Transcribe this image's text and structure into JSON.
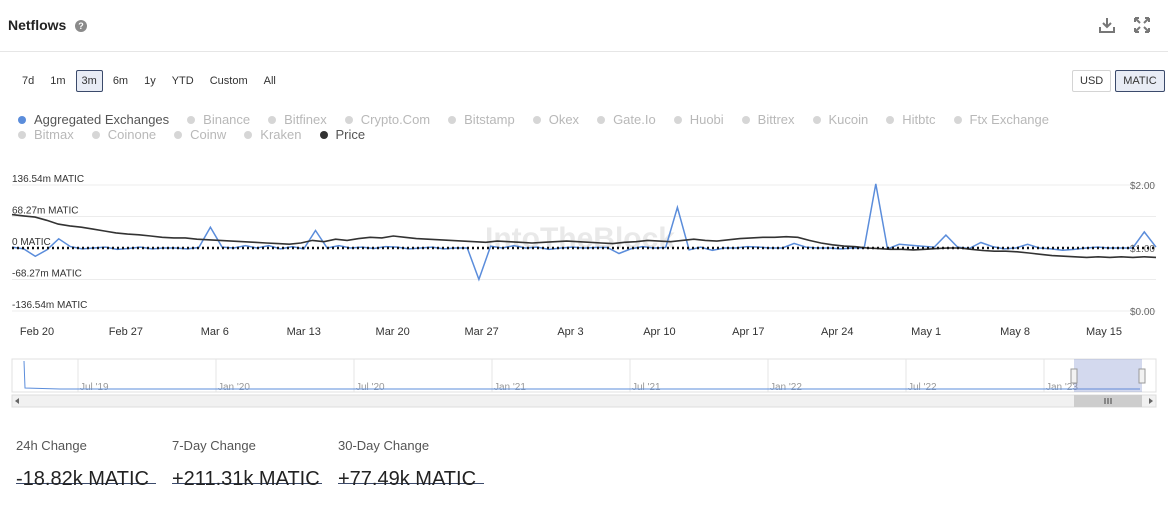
{
  "header": {
    "title": "Netflows",
    "help_icon": "?"
  },
  "range_buttons": [
    "7d",
    "1m",
    "3m",
    "6m",
    "1y",
    "YTD",
    "Custom",
    "All"
  ],
  "range_active": "3m",
  "unit_buttons": [
    "USD",
    "MATIC"
  ],
  "unit_active": "MATIC",
  "legend": [
    [
      {
        "label": "Aggregated Exchanges",
        "on": true,
        "color": "#5b8ddb"
      },
      {
        "label": "Binance",
        "on": false
      },
      {
        "label": "Bitfinex",
        "on": false
      },
      {
        "label": "Crypto.Com",
        "on": false
      },
      {
        "label": "Bitstamp",
        "on": false
      },
      {
        "label": "Okex",
        "on": false
      },
      {
        "label": "Gate.Io",
        "on": false
      },
      {
        "label": "Huobi",
        "on": false
      },
      {
        "label": "Bittrex",
        "on": false
      },
      {
        "label": "Kucoin",
        "on": false
      },
      {
        "label": "Hitbtc",
        "on": false
      },
      {
        "label": "Ftx Exchange",
        "on": false
      }
    ],
    [
      {
        "label": "Bitmax",
        "on": false
      },
      {
        "label": "Coinone",
        "on": false
      },
      {
        "label": "Coinw",
        "on": false
      },
      {
        "label": "Kraken",
        "on": false
      },
      {
        "label": "Price",
        "on": true,
        "color": "#333333"
      }
    ]
  ],
  "chart_data": {
    "type": "line",
    "watermark": "IntoTheBlock",
    "y_left_ticks": [
      "136.54m MATIC",
      "68.27m MATIC",
      "0 MATIC",
      "-68.27m MATIC",
      "-136.54m MATIC"
    ],
    "y_left_values": [
      136.54,
      68.27,
      0,
      -68.27,
      -136.54
    ],
    "y_right_ticks": [
      "$2.00",
      "$1.00",
      "$0.00"
    ],
    "y_right_values": [
      2.0,
      1.0,
      0.0
    ],
    "x_ticks": [
      "Feb 20",
      "Feb 27",
      "Mar 6",
      "Mar 13",
      "Mar 20",
      "Mar 27",
      "Apr 3",
      "Apr 10",
      "Apr 17",
      "Apr 24",
      "May 1",
      "May 8",
      "May 15"
    ],
    "ylim_left": [
      -136.54,
      136.54
    ],
    "ylim_right": [
      0,
      2
    ],
    "series": [
      {
        "name": "Aggregated Exchanges",
        "color": "#5b8ddb",
        "values": [
          2,
          -2,
          -18,
          -4,
          20,
          3,
          -2,
          0,
          2,
          -3,
          -1,
          2,
          -2,
          0,
          0,
          -2,
          1,
          45,
          2,
          0,
          5,
          0,
          5,
          -2,
          3,
          -2,
          38,
          0,
          5,
          0,
          2,
          -1,
          3,
          2,
          -2,
          0,
          2,
          -2,
          0,
          0,
          -68,
          4,
          0,
          5,
          0,
          2,
          -3,
          0,
          2,
          0,
          1,
          1,
          -12,
          -2,
          3,
          0,
          1,
          88,
          -4,
          2,
          -5,
          0,
          0,
          3,
          2,
          0,
          0,
          10,
          2,
          0,
          0,
          -2,
          0,
          0,
          139,
          -2,
          8,
          6,
          4,
          2,
          28,
          2,
          -1,
          12,
          3,
          -2,
          0,
          8,
          0,
          -2,
          -5,
          -3,
          0,
          2,
          0,
          0,
          0,
          35,
          2
        ]
      },
      {
        "name": "Price",
        "color": "#333333",
        "values": [
          1.53,
          1.51,
          1.49,
          1.44,
          1.38,
          1.35,
          1.33,
          1.3,
          1.27,
          1.24,
          1.22,
          1.21,
          1.19,
          1.17,
          1.16,
          1.16,
          1.14,
          1.13,
          1.12,
          1.11,
          1.1,
          1.09,
          1.08,
          1.07,
          1.06,
          1.08,
          1.12,
          1.1,
          1.14,
          1.12,
          1.15,
          1.17,
          1.16,
          1.19,
          1.17,
          1.15,
          1.14,
          1.13,
          1.12,
          1.11,
          1.1,
          1.09,
          1.11,
          1.1,
          1.09,
          1.08,
          1.09,
          1.1,
          1.11,
          1.1,
          1.09,
          1.08,
          1.07,
          1.09,
          1.1,
          1.12,
          1.11,
          1.1,
          1.12,
          1.14,
          1.12,
          1.11,
          1.13,
          1.15,
          1.16,
          1.17,
          1.17,
          1.18,
          1.17,
          1.12,
          1.08,
          1.05,
          1.03,
          1.02,
          1.0,
          0.99,
          0.98,
          0.98,
          0.97,
          0.98,
          0.99,
          1.0,
          1.0,
          0.98,
          0.96,
          0.95,
          0.95,
          0.94,
          0.92,
          0.9,
          0.88,
          0.87,
          0.86,
          0.85,
          0.86,
          0.85,
          0.86,
          0.85,
          0.86,
          0.85
        ]
      }
    ],
    "zero_line": "dotted"
  },
  "navigator": {
    "labels": [
      "Jul '19",
      "Jan '20",
      "Jul '20",
      "Jan '21",
      "Jul '21",
      "Jan '22",
      "Jul '22",
      "Jan '23"
    ]
  },
  "stats": [
    {
      "label": "24h Change",
      "value": "-18.82k MATIC"
    },
    {
      "label": "7-Day Change",
      "value": "+211.31k MATIC"
    },
    {
      "label": "30-Day Change",
      "value": "+77.49k MATIC"
    }
  ]
}
